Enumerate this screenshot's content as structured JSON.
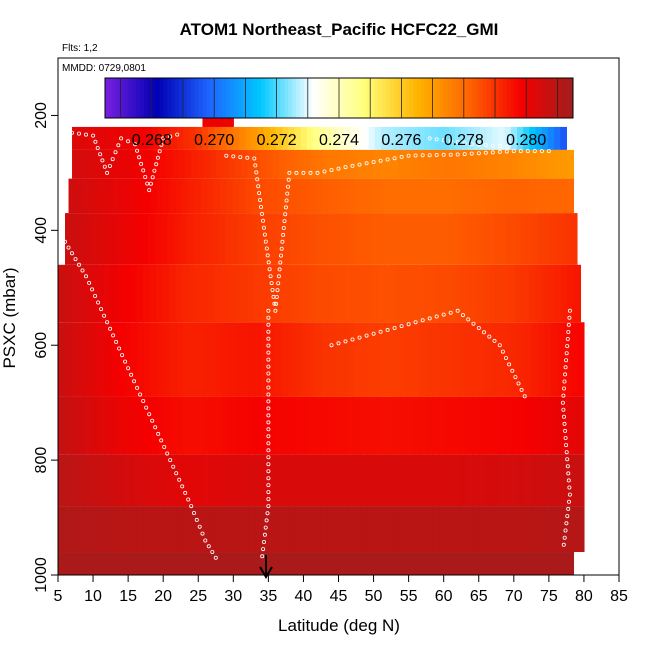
{
  "chart_data": {
    "type": "heatmap",
    "title": "ATOM1 Northeast_Pacific HCFC22_GMI",
    "annotations": {
      "flights": "Flts: 1,2",
      "dates": "MMDD: 0729,0801"
    },
    "xlabel": "Latitude (deg N)",
    "ylabel": "PSXC (mbar)",
    "xlim": [
      5,
      85
    ],
    "ylim": [
      1000,
      100
    ],
    "xticks": [
      "5",
      "10",
      "15",
      "20",
      "25",
      "30",
      "35",
      "40",
      "45",
      "50",
      "55",
      "60",
      "65",
      "70",
      "75",
      "80",
      "85"
    ],
    "yticks": [
      "200",
      "400",
      "600",
      "800",
      "1000"
    ],
    "colorbar": {
      "ticks": [
        "0.268",
        "0.270",
        "0.272",
        "0.274",
        "0.276",
        "0.278",
        "0.280"
      ],
      "range": [
        0.2665,
        0.2815
      ],
      "colors": [
        "#7a1fe0",
        "#0000b4",
        "#1e64ff",
        "#00c8ff",
        "#ffffff",
        "#ffff7a",
        "#ffb400",
        "#ff6400",
        "#f50000",
        "#a01e1e"
      ]
    },
    "marker_latitude": 35,
    "layers": [
      {
        "p": [
          170,
          220
        ],
        "lat": [
          25.6,
          30.0
        ],
        "values": [
          0.28,
          0.28
        ]
      },
      {
        "p": [
          220,
          260
        ],
        "lat": [
          7.0,
          77.5
        ],
        "values": [
          0.2803,
          0.28,
          0.279,
          0.277,
          0.2745,
          0.2727,
          0.2722,
          0.273,
          0.2695
        ]
      },
      {
        "p": [
          260,
          310
        ],
        "lat": [
          7.0,
          78.5
        ],
        "values": [
          0.2805,
          0.28,
          0.2793,
          0.2785,
          0.2778,
          0.2775,
          0.2778,
          0.2775,
          0.277
        ]
      },
      {
        "p": [
          310,
          370
        ],
        "lat": [
          6.5,
          78.5
        ],
        "values": [
          0.2806,
          0.28,
          0.2793,
          0.2786,
          0.2783,
          0.278,
          0.278,
          0.2782,
          0.2781
        ]
      },
      {
        "p": [
          370,
          460
        ],
        "lat": [
          6.0,
          79.0
        ],
        "values": [
          0.2807,
          0.28,
          0.2793,
          0.2788,
          0.2785,
          0.2783,
          0.2783,
          0.2786,
          0.279
        ]
      },
      {
        "p": [
          460,
          560
        ],
        "lat": [
          5.0,
          79.5
        ],
        "values": [
          0.2807,
          0.2799,
          0.2792,
          0.2789,
          0.2786,
          0.2785,
          0.2786,
          0.2789,
          0.2795
        ]
      },
      {
        "p": [
          560,
          690
        ],
        "lat": [
          5.0,
          80.0
        ],
        "values": [
          0.2807,
          0.2798,
          0.2793,
          0.2795,
          0.279,
          0.2788,
          0.279,
          0.2792,
          0.2798
        ]
      },
      {
        "p": [
          690,
          790
        ],
        "lat": [
          5.0,
          80.0
        ],
        "values": [
          0.2808,
          0.28,
          0.2796,
          0.2798,
          0.2797,
          0.2796,
          0.2797,
          0.2798,
          0.2802
        ]
      },
      {
        "p": [
          790,
          880
        ],
        "lat": [
          5.0,
          80.0
        ],
        "values": [
          0.281,
          0.2805,
          0.2802,
          0.2804,
          0.2804,
          0.2804,
          0.2804,
          0.2805,
          0.2807
        ]
      },
      {
        "p": [
          880,
          960
        ],
        "lat": [
          5.0,
          80.0
        ],
        "values": [
          0.2812,
          0.281,
          0.281,
          0.281,
          0.281,
          0.281,
          0.281,
          0.281,
          0.2811
        ]
      },
      {
        "p": [
          960,
          1000
        ],
        "lat": [
          5.0,
          78.5
        ],
        "values": [
          0.2813,
          0.2813,
          0.2813,
          0.2813,
          0.2813,
          0.2813,
          0.2813,
          0.2813,
          0.2813
        ]
      }
    ],
    "flight_tracks": [
      [
        [
          7,
          230
        ],
        [
          10,
          235
        ],
        [
          12,
          300
        ],
        [
          14,
          240
        ],
        [
          16,
          250
        ],
        [
          18,
          330
        ],
        [
          20,
          240
        ],
        [
          23,
          230
        ]
      ],
      [
        [
          6,
          420
        ],
        [
          9,
          480
        ],
        [
          12,
          560
        ],
        [
          15,
          640
        ],
        [
          18,
          720
        ],
        [
          21,
          800
        ],
        [
          24,
          880
        ],
        [
          26,
          940
        ],
        [
          28,
          980
        ]
      ],
      [
        [
          27,
          200
        ],
        [
          30,
          200
        ],
        [
          33,
          200
        ]
      ],
      [
        [
          29,
          270
        ],
        [
          33,
          275
        ],
        [
          36,
          540
        ],
        [
          38,
          300
        ],
        [
          42,
          300
        ],
        [
          46,
          290
        ],
        [
          55,
          270
        ],
        [
          62,
          268
        ],
        [
          70,
          262
        ],
        [
          76,
          262
        ]
      ],
      [
        [
          58,
          240
        ],
        [
          64,
          250
        ],
        [
          70,
          255
        ]
      ],
      [
        [
          35,
          540
        ],
        [
          35,
          880
        ],
        [
          34,
          980
        ]
      ],
      [
        [
          78,
          540
        ],
        [
          77,
          700
        ],
        [
          78,
          860
        ],
        [
          77,
          960
        ]
      ],
      [
        [
          44,
          600
        ],
        [
          50,
          580
        ],
        [
          56,
          560
        ],
        [
          62,
          540
        ],
        [
          68,
          600
        ],
        [
          72,
          700
        ]
      ]
    ]
  }
}
